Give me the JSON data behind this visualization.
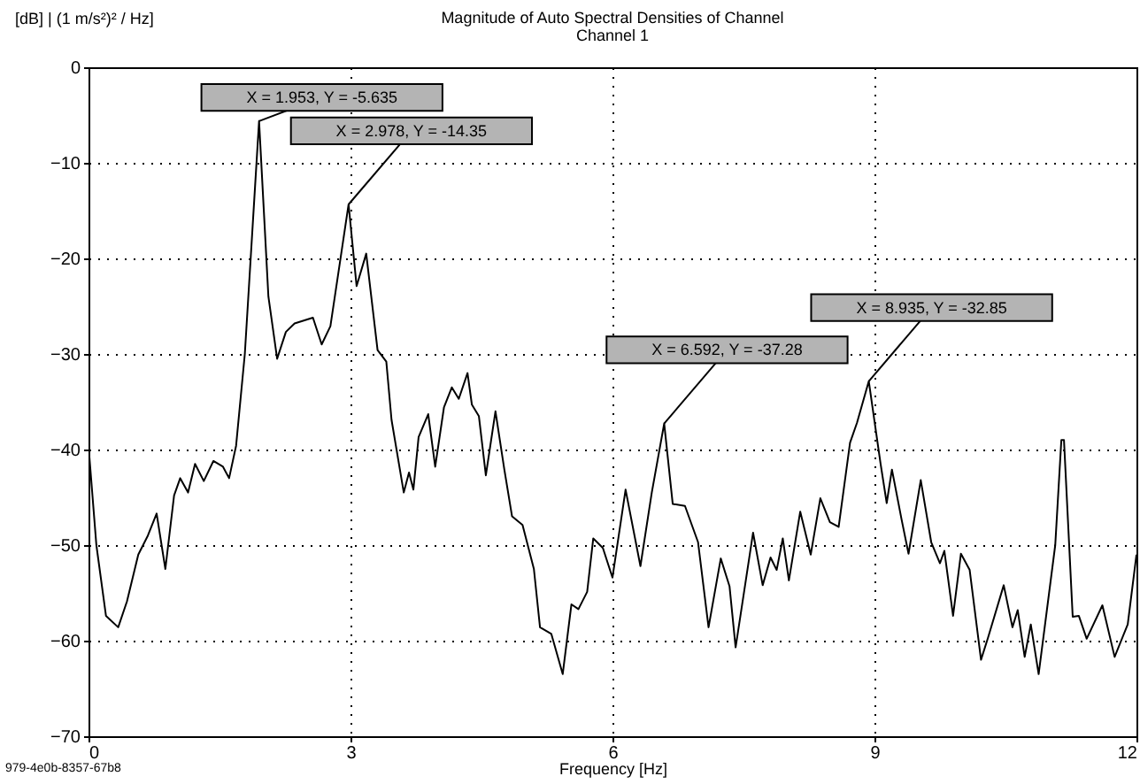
{
  "chart_data": {
    "type": "line",
    "title": "Magnitude of Auto Spectral Densities of Channel",
    "subtitle": "Channel 1",
    "xlabel": "Frequency [Hz]",
    "ylabel": "[dB] | (1 m/s²)² / Hz]",
    "xlim": [
      0,
      12
    ],
    "ylim": [
      -70,
      0
    ],
    "xticks": [
      0,
      3,
      6,
      9,
      12
    ],
    "yticks": [
      -70,
      -60,
      -50,
      -40,
      -30,
      -20,
      -10,
      0
    ],
    "grid": true,
    "marker": "none",
    "line_style": "solid",
    "series": [
      {
        "color": "#000000",
        "x": [
          0,
          0.09,
          0.2,
          0.34,
          0.44,
          0.57,
          0.68,
          0.78,
          0.88,
          0.98,
          1.05,
          1.14,
          1.22,
          1.32,
          1.43,
          1.54,
          1.61,
          1.69,
          1.79,
          1.953,
          2.06,
          2.16,
          2.26,
          2.36,
          2.57,
          2.67,
          2.77,
          2.978,
          3.07,
          3.18,
          3.31,
          3.41,
          3.47,
          3.61,
          3.67,
          3.72,
          3.78,
          3.89,
          3.97,
          4.07,
          4.16,
          4.24,
          4.34,
          4.39,
          4.47,
          4.55,
          4.66,
          4.76,
          4.85,
          4.97,
          5.1,
          5.17,
          5.3,
          5.43,
          5.53,
          5.61,
          5.71,
          5.78,
          5.89,
          6.0,
          6.15,
          6.32,
          6.45,
          6.592,
          6.69,
          6.83,
          6.98,
          7.1,
          7.24,
          7.34,
          7.41,
          7.61,
          7.72,
          7.81,
          7.88,
          7.95,
          8.02,
          8.15,
          8.27,
          8.38,
          8.49,
          8.59,
          8.72,
          8.8,
          8.935,
          9.07,
          9.14,
          9.2,
          9.31,
          9.39,
          9.53,
          9.65,
          9.75,
          9.8,
          9.9,
          9.99,
          10.09,
          10.22,
          10.3,
          10.48,
          10.58,
          10.64,
          10.72,
          10.79,
          10.88,
          11.07,
          11.14,
          11.17,
          11.27,
          11.34,
          11.43,
          11.61,
          11.75,
          11.9,
          12.0
        ],
        "values": [
          -39.6,
          -50,
          -57.4,
          -58.6,
          -55.9,
          -51,
          -49,
          -46.7,
          -52.5,
          -44.8,
          -43,
          -44.5,
          -41.5,
          -43.3,
          -41.2,
          -41.8,
          -43,
          -39.6,
          -30,
          -5.635,
          -24,
          -30.5,
          -27.7,
          -26.8,
          -26.2,
          -29,
          -27.1,
          -14.35,
          -22.9,
          -19.5,
          -29.6,
          -30.8,
          -36.9,
          -44.5,
          -42.4,
          -44.2,
          -38.7,
          -36.3,
          -41.8,
          -35.6,
          -33.5,
          -34.7,
          -32,
          -35.3,
          -36.5,
          -42.7,
          -36,
          -42,
          -47,
          -47.9,
          -52.5,
          -58.6,
          -59.3,
          -63.5,
          -56.2,
          -56.7,
          -54.9,
          -49.3,
          -50.3,
          -53.4,
          -44.2,
          -52.2,
          -44.5,
          -37.28,
          -45.7,
          -45.9,
          -49.7,
          -58.6,
          -51.4,
          -54.3,
          -60.7,
          -48.7,
          -54.2,
          -51.3,
          -52.6,
          -49.3,
          -53.7,
          -46.5,
          -51,
          -45.1,
          -47.6,
          -48.1,
          -39.3,
          -37.2,
          -32.85,
          -41.5,
          -45.6,
          -42.1,
          -47.3,
          -50.9,
          -43.2,
          -49.7,
          -51.9,
          -50.6,
          -57.4,
          -50.9,
          -52.6,
          -62,
          -59.7,
          -54.2,
          -58.6,
          -56.8,
          -61.7,
          -58.3,
          -63.5,
          -50,
          -39,
          -39,
          -57.5,
          -57.4,
          -59.8,
          -56.3,
          -61.7,
          -58.3,
          -51
        ]
      }
    ],
    "annotations": [
      {
        "text": "X = 1.953, Y = -5.635",
        "x": 1.953,
        "y": -5.635
      },
      {
        "text": "X = 2.978, Y = -14.35",
        "x": 2.978,
        "y": -14.35
      },
      {
        "text": "X = 6.592, Y = -37.28",
        "x": 6.592,
        "y": -37.28
      },
      {
        "text": "X = 8.935, Y = -32.85",
        "x": 8.935,
        "y": -32.85
      },
      "979-4e0b-8357-67b8"
    ]
  }
}
